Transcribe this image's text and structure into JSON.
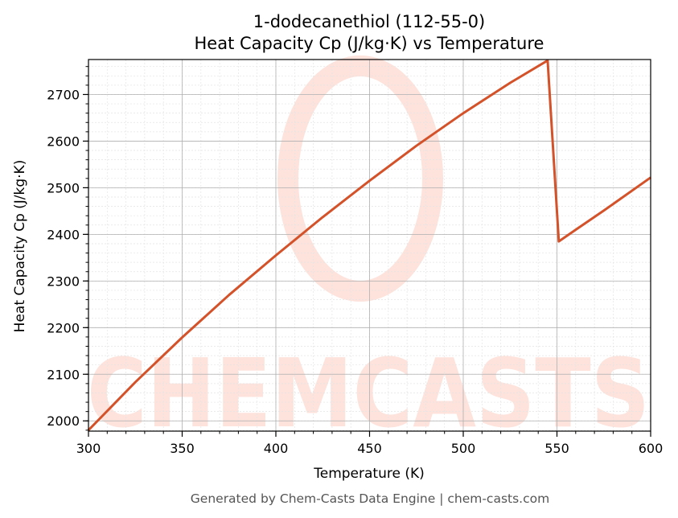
{
  "title_line1": "1-dodecanethiol (112-55-0)",
  "title_line2": "Heat Capacity Cp (J/kg·K) vs Temperature",
  "footer": "Generated by Chem-Casts Data Engine | chem-casts.com",
  "watermark": "CHEMCASTS",
  "colors": {
    "line": "#d4522a",
    "watermark": "#fde3dc",
    "grid_major": "#b0b0b0",
    "grid_minor": "#e4e4e4"
  },
  "chart_data": {
    "type": "line",
    "title": "1-dodecanethiol (112-55-0)\nHeat Capacity Cp (J/kg·K) vs Temperature",
    "xlabel": "Temperature (K)",
    "ylabel": "Heat Capacity Cp (J/kg·K)",
    "xlim": [
      300,
      600
    ],
    "ylim": [
      1978,
      2775
    ],
    "xticks": [
      300,
      350,
      400,
      450,
      500,
      550,
      600
    ],
    "yticks": [
      2000,
      2100,
      2200,
      2300,
      2400,
      2500,
      2600,
      2700
    ],
    "grid": true,
    "minor_grid": true,
    "series": [
      {
        "x": [
          300,
          325,
          350,
          375,
          400,
          425,
          450,
          475,
          500,
          525,
          545,
          551,
          560,
          575,
          600
        ],
        "y": [
          1980,
          2083,
          2179,
          2270,
          2355,
          2437,
          2515,
          2590,
          2660,
          2725,
          2773,
          2385,
          2410,
          2451,
          2522
        ]
      }
    ]
  }
}
